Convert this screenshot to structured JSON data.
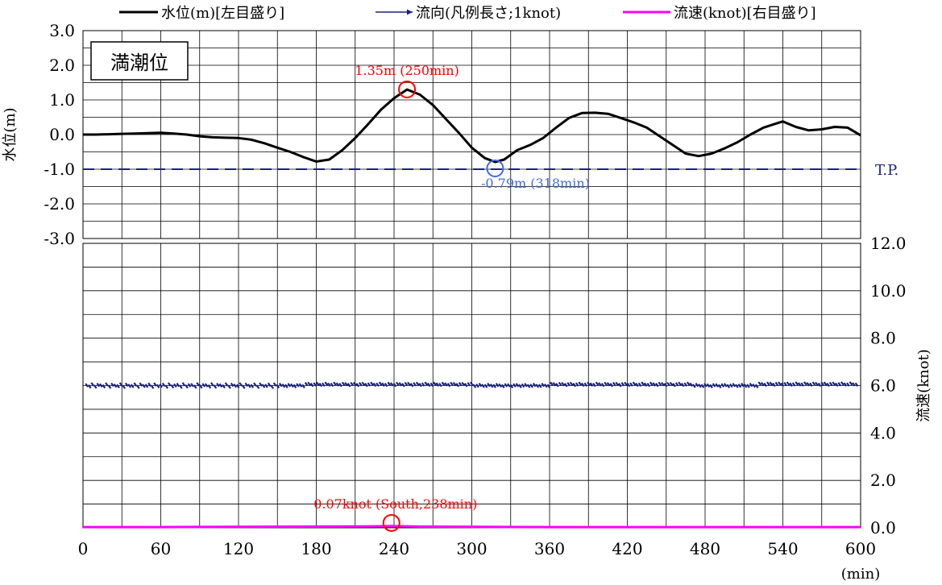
{
  "chart_data": {
    "type": "line",
    "legend": {
      "placement": "top",
      "entries": [
        {
          "label": "水位(m)[左目盛り]",
          "color": "#000000",
          "style": "line"
        },
        {
          "label": "流向(凡例長さ;1knot)",
          "color": "#1a237e",
          "style": "arrow"
        },
        {
          "label": "流速(knot)[右目盛り]",
          "color": "#ff00ff",
          "style": "line"
        }
      ]
    },
    "x_ticks": [
      "0",
      "60",
      "120",
      "180",
      "240",
      "300",
      "360",
      "420",
      "480",
      "540",
      "600"
    ],
    "x_unit": "(min)",
    "xlim": [
      0,
      600
    ],
    "grid": true,
    "top_panel": {
      "label_box": "満潮位",
      "ylabel": "水位(m)",
      "ylim": [
        -3,
        3
      ],
      "y_ticks": [
        "3.0",
        "2.0",
        "1.0",
        "0.0",
        "-1.0",
        "-2.0",
        "-3.0"
      ],
      "reference": {
        "label": "T.P.",
        "value": -1.0,
        "color": "#1a237e"
      },
      "series": [
        {
          "color": "#000000",
          "points": [
            [
              0,
              0
            ],
            [
              10,
              0
            ],
            [
              20,
              0.01
            ],
            [
              30,
              0.02
            ],
            [
              40,
              0.03
            ],
            [
              50,
              0.04
            ],
            [
              60,
              0.05
            ],
            [
              70,
              0.03
            ],
            [
              80,
              0.0
            ],
            [
              90,
              -0.05
            ],
            [
              100,
              -0.08
            ],
            [
              110,
              -0.09
            ],
            [
              120,
              -0.1
            ],
            [
              130,
              -0.15
            ],
            [
              140,
              -0.25
            ],
            [
              150,
              -0.38
            ],
            [
              160,
              -0.5
            ],
            [
              170,
              -0.65
            ],
            [
              180,
              -0.78
            ],
            [
              190,
              -0.72
            ],
            [
              200,
              -0.45
            ],
            [
              210,
              -0.1
            ],
            [
              220,
              0.3
            ],
            [
              230,
              0.72
            ],
            [
              240,
              1.05
            ],
            [
              250,
              1.3
            ],
            [
              260,
              1.15
            ],
            [
              270,
              0.85
            ],
            [
              280,
              0.45
            ],
            [
              290,
              0.05
            ],
            [
              300,
              -0.38
            ],
            [
              310,
              -0.68
            ],
            [
              318,
              -0.79
            ],
            [
              325,
              -0.72
            ],
            [
              335,
              -0.45
            ],
            [
              345,
              -0.3
            ],
            [
              355,
              -0.1
            ],
            [
              365,
              0.2
            ],
            [
              375,
              0.48
            ],
            [
              385,
              0.62
            ],
            [
              395,
              0.63
            ],
            [
              405,
              0.6
            ],
            [
              415,
              0.48
            ],
            [
              425,
              0.35
            ],
            [
              435,
              0.2
            ],
            [
              445,
              -0.05
            ],
            [
              455,
              -0.3
            ],
            [
              465,
              -0.55
            ],
            [
              475,
              -0.62
            ],
            [
              485,
              -0.55
            ],
            [
              495,
              -0.4
            ],
            [
              505,
              -0.22
            ],
            [
              515,
              0.0
            ],
            [
              525,
              0.2
            ],
            [
              535,
              0.32
            ],
            [
              540,
              0.38
            ],
            [
              550,
              0.22
            ],
            [
              560,
              0.12
            ],
            [
              570,
              0.15
            ],
            [
              580,
              0.22
            ],
            [
              590,
              0.2
            ],
            [
              600,
              -0.02
            ]
          ]
        }
      ],
      "annotations": [
        {
          "text": "1.35m (250min)",
          "x": 250,
          "y": 1.35,
          "color": "#ff0000"
        },
        {
          "text": "-0.79m (318min)",
          "x": 318,
          "y": -0.79,
          "color": "#4169e1"
        }
      ]
    },
    "bottom_panel": {
      "ylabel": "流速(knot)",
      "ylim": [
        0,
        12
      ],
      "y_ticks": [
        "12.0",
        "10.0",
        "8.0",
        "6.0",
        "4.0",
        "2.0",
        "0.0"
      ],
      "series": [
        {
          "color": "#1a237e",
          "baseline": 6.0,
          "points": [
            [
              0,
              6.0
            ],
            [
              60,
              6.0
            ],
            [
              120,
              6.0
            ],
            [
              180,
              6.1
            ],
            [
              240,
              6.1
            ],
            [
              300,
              6.0
            ],
            [
              360,
              6.05
            ],
            [
              420,
              6.1
            ],
            [
              480,
              6.0
            ],
            [
              540,
              6.1
            ],
            [
              600,
              6.1
            ]
          ]
        },
        {
          "color": "#ff00ff",
          "points": [
            [
              0,
              0.03
            ],
            [
              60,
              0.03
            ],
            [
              120,
              0.04
            ],
            [
              180,
              0.05
            ],
            [
              220,
              0.06
            ],
            [
              238,
              0.07
            ],
            [
              260,
              0.05
            ],
            [
              300,
              0.04
            ],
            [
              360,
              0.03
            ],
            [
              420,
              0.03
            ],
            [
              480,
              0.03
            ],
            [
              540,
              0.03
            ],
            [
              600,
              0.03
            ]
          ]
        }
      ],
      "annotations": [
        {
          "text": "0.07knot (South,238min)",
          "x": 238,
          "y": 0.07,
          "color": "#ff0000"
        }
      ]
    }
  }
}
